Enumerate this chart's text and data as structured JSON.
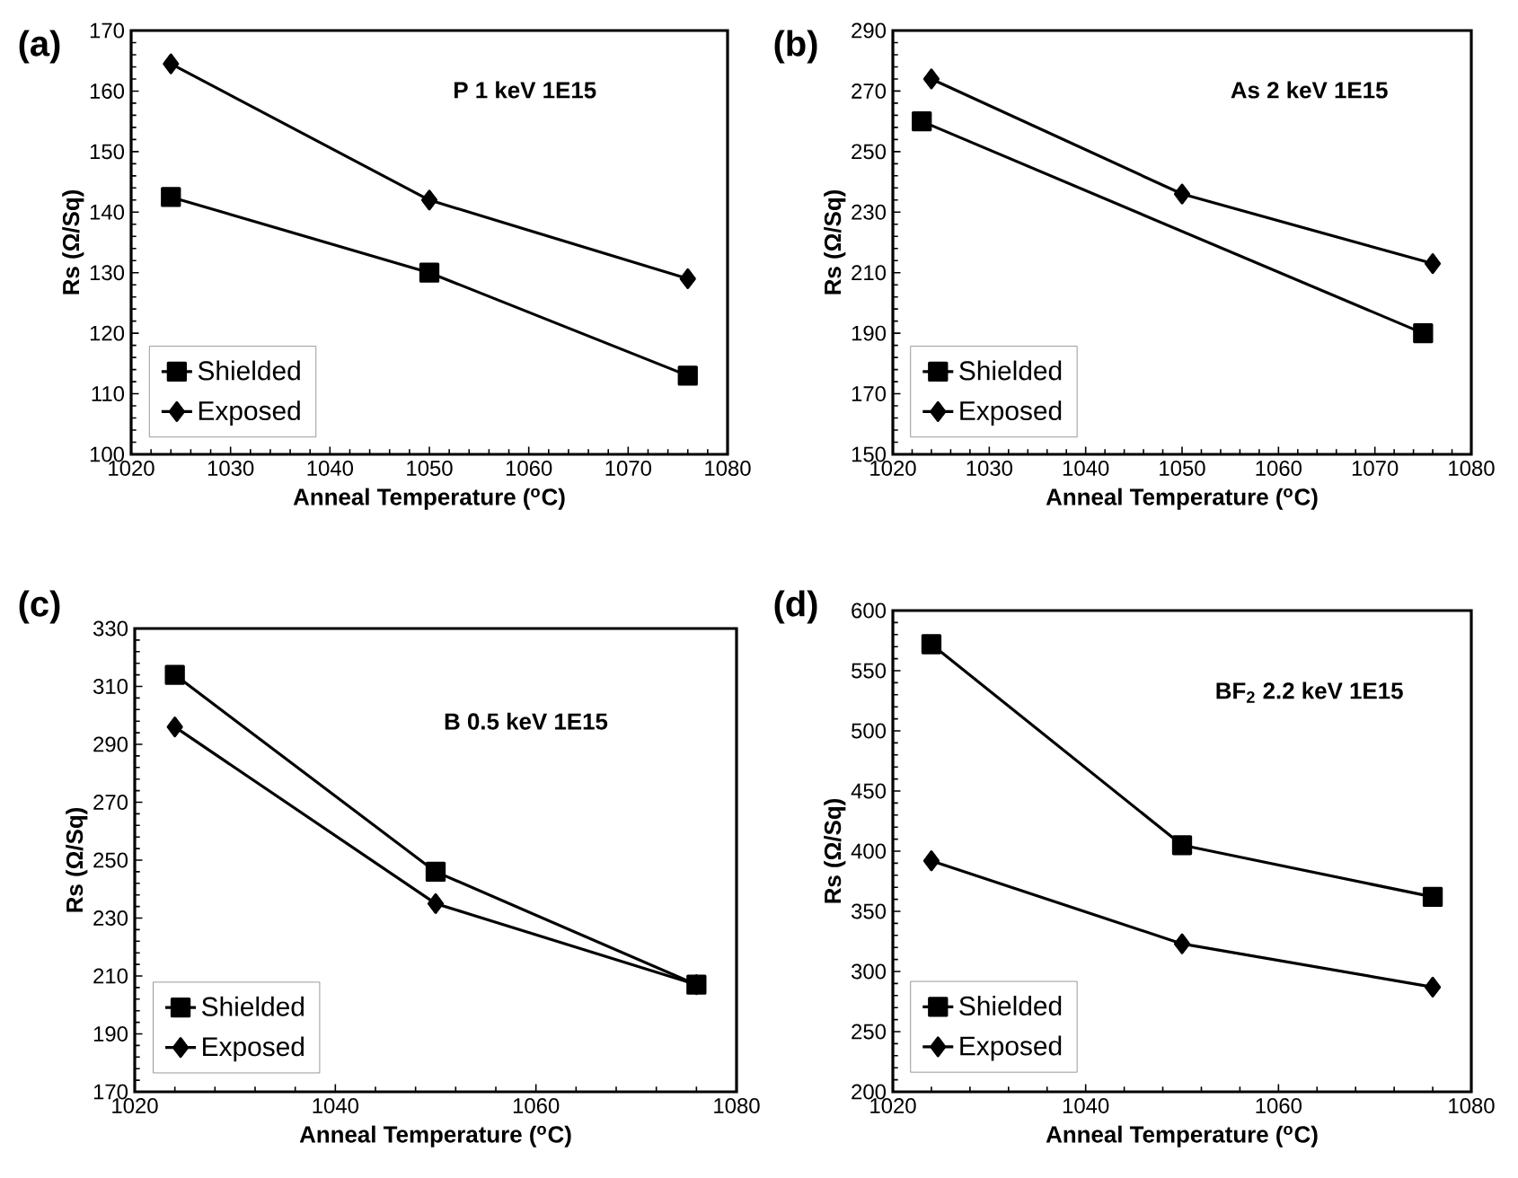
{
  "chart_data": [
    {
      "type": "line",
      "title": "(a)",
      "annotations": [
        "P 1 keV 1E15"
      ],
      "xlabel": "Anneal Temperature ($^{o}$C)",
      "ylabel": "Rs (Ω/Sq)",
      "x": [
        1024,
        1050,
        1076
      ],
      "xlim": [
        1020,
        1080
      ],
      "xticks": [
        1020,
        1030,
        1040,
        1050,
        1060,
        1070,
        1080
      ],
      "ylim": [
        100,
        170
      ],
      "yticks": [
        100,
        110,
        120,
        130,
        140,
        150,
        160,
        170
      ],
      "legend": "bottom left",
      "line_style": "solid",
      "series": [
        {
          "name": "Shielded",
          "color": "#000000",
          "marker": "square",
          "values": [
            142.5,
            130,
            113
          ]
        },
        {
          "name": "Exposed",
          "color": "#000000",
          "marker": "diamond",
          "values": [
            164.5,
            142,
            129
          ]
        }
      ]
    },
    {
      "type": "line",
      "title": "(b)",
      "annotations": [
        "As 2 keV 1E15"
      ],
      "xlabel": "Anneal Temperature ($^{o}$C)",
      "ylabel": "Rs (Ω/Sq)",
      "x": [
        1024,
        1050,
        1076
      ],
      "xlim": [
        1020,
        1080
      ],
      "xticks": [
        1020,
        1030,
        1040,
        1050,
        1060,
        1070,
        1080
      ],
      "ylim": [
        150,
        290
      ],
      "yticks": [
        150,
        170,
        190,
        210,
        230,
        250,
        270,
        290
      ],
      "legend": "bottom left",
      "line_style": "solid",
      "series": [
        {
          "name": "Shielded",
          "color": "#000000",
          "marker": "square",
          "x": [
            1023,
            1075
          ],
          "values": [
            260,
            190
          ]
        },
        {
          "name": "Exposed",
          "color": "#000000",
          "marker": "diamond",
          "values": [
            274,
            236,
            213
          ]
        }
      ]
    },
    {
      "type": "line",
      "title": "(c)",
      "annotations": [
        "B 0.5 keV 1E15"
      ],
      "xlabel": "Anneal Temperature ($^{o}$C)",
      "ylabel": "Rs (Ω/Sq)",
      "x": [
        1024,
        1050,
        1076
      ],
      "xlim": [
        1020,
        1080
      ],
      "xticks": [
        1020,
        1040,
        1060,
        1080
      ],
      "ylim": [
        170,
        330
      ],
      "yticks": [
        170,
        190,
        210,
        230,
        250,
        270,
        290,
        310,
        330
      ],
      "legend": "bottom left",
      "line_style": "solid",
      "series": [
        {
          "name": "Shielded",
          "color": "#000000",
          "marker": "square",
          "values": [
            314,
            246,
            207
          ]
        },
        {
          "name": "Exposed",
          "color": "#000000",
          "marker": "diamond",
          "values": [
            296,
            235,
            207
          ]
        }
      ]
    },
    {
      "type": "line",
      "title": "(d)",
      "annotations": [
        "BF$_{2}$ 2.2 keV 1E15"
      ],
      "xlabel": "Anneal Temperature ($^{o}$C)",
      "ylabel": "Rs (Ω/Sq)",
      "x": [
        1024,
        1050,
        1076
      ],
      "xlim": [
        1020,
        1080
      ],
      "xticks": [
        1020,
        1040,
        1060,
        1080
      ],
      "ylim": [
        200,
        600
      ],
      "yticks": [
        200,
        250,
        300,
        350,
        400,
        450,
        500,
        550,
        600
      ],
      "legend": "bottom left",
      "line_style": "solid",
      "series": [
        {
          "name": "Shielded",
          "color": "#000000",
          "marker": "square",
          "values": [
            572,
            405,
            362
          ]
        },
        {
          "name": "Exposed",
          "color": "#000000",
          "marker": "diamond",
          "values": [
            392,
            323,
            287
          ]
        }
      ]
    }
  ]
}
